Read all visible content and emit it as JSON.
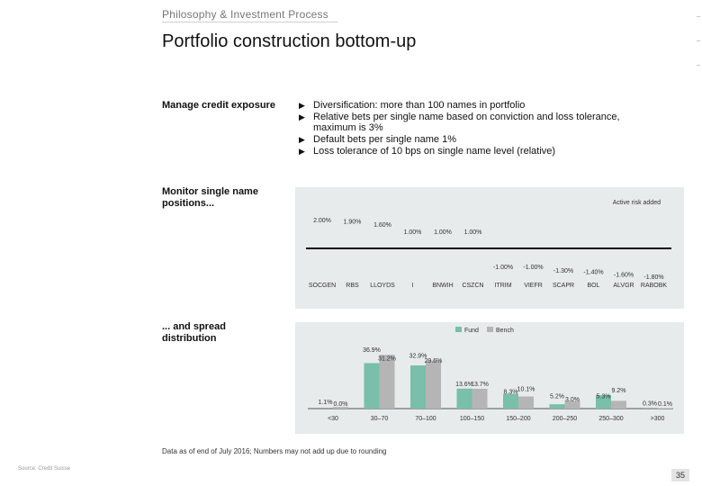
{
  "header": {
    "kicker": "Philosophy & Investment Process",
    "title": "Portfolio construction bottom-up"
  },
  "section1": {
    "label": "Manage credit exposure",
    "bullets": [
      "Diversification: more than 100 names in portfolio",
      "Relative bets per single name based on conviction and loss tolerance, maximum is 3%",
      "Default bets per single name 1%",
      "Loss tolerance of 10 bps on single name level (relative)"
    ]
  },
  "section2": {
    "label_line1": "Monitor single name",
    "label_line2": "positions..."
  },
  "section3": {
    "label_line1": "... and spread",
    "label_line2": "distribution"
  },
  "colors": {
    "panel_bg": "#e7ebeb",
    "bar_primary": "#79bfa9",
    "bar_secondary": "#b5b5b5"
  },
  "chart_data": [
    {
      "type": "bar",
      "legend": "Active risk added",
      "categories": [
        "SOCGEN",
        "RBS",
        "LLOYDS",
        "I",
        "BNWIH",
        "CSZCN",
        "ITRIM",
        "VIEFR",
        "SCAPR",
        "BOL",
        "ALVGR",
        "RABOBK"
      ],
      "values": [
        2.0,
        1.9,
        1.6,
        1.0,
        1.0,
        1.0,
        -1.0,
        -1.0,
        -1.3,
        -1.4,
        -1.6,
        -1.8
      ],
      "value_labels": [
        "2.00%",
        "1.90%",
        "1.60%",
        "1.00%",
        "1.00%",
        "1.00%",
        "-1.00%",
        "-1.00%",
        "-1.30%",
        "-1.40%",
        "-1.60%",
        "-1.80%"
      ]
    },
    {
      "type": "bar",
      "legend": [
        "Fund",
        "Bench"
      ],
      "categories": [
        "<30",
        "30–70",
        "70–100",
        "100–150",
        "150–200",
        "200–250",
        "250–300",
        ">300"
      ],
      "series": [
        {
          "name": "Fund",
          "values": [
            0.0,
            31.2,
            29.6,
            13.7,
            10.1,
            3.0,
            9.2,
            0.1
          ]
        },
        {
          "name": "Bench",
          "values": [
            1.1,
            36.9,
            32.9,
            13.6,
            8.3,
            5.2,
            5.3,
            0.3
          ]
        }
      ],
      "fund_labels": [
        "0.0%",
        "31.2%",
        "29.6%",
        "13.7%",
        "10.1%",
        "3.0%",
        "9.2%",
        "0.1%"
      ],
      "bench_labels": [
        "1.1%",
        "36.9%",
        "32.9%",
        "13.6%",
        "8.3%",
        "5.2%",
        "5.3%",
        "0.3%"
      ]
    }
  ],
  "footnote": "Data as of end of July 2016; Numbers may not add up due to rounding",
  "footer": {
    "left": "Source: Credit Suisse",
    "page_number": "35"
  }
}
